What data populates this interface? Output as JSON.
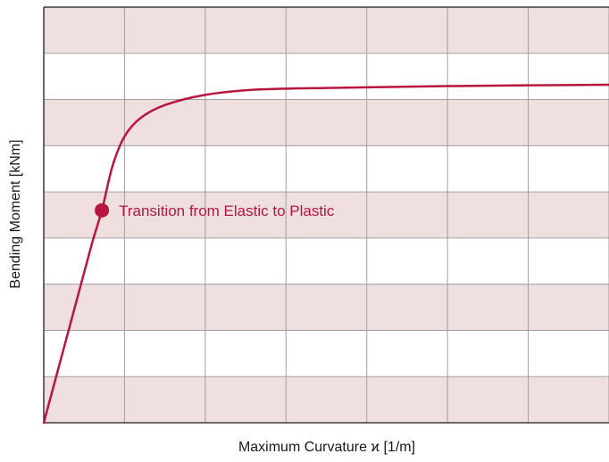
{
  "chart_data": {
    "type": "line",
    "title": "",
    "xlabel": "Maximum Curvature ϰ [1/m]",
    "ylabel": "Bending Moment [kNm]",
    "xlim": [
      0,
      7
    ],
    "ylim": [
      0,
      9
    ],
    "grid": true,
    "band_color": "#efdfdf",
    "grid_color": "#a0a0a0",
    "line_color": "#b8163f",
    "series": [
      {
        "values": [
          {
            "x": 0.0,
            "y": 0.0
          },
          {
            "x": 0.2,
            "y": 1.3
          },
          {
            "x": 0.4,
            "y": 2.6
          },
          {
            "x": 0.6,
            "y": 3.9
          },
          {
            "x": 0.72,
            "y": 4.6
          },
          {
            "x": 0.85,
            "y": 5.55
          },
          {
            "x": 1.0,
            "y": 6.2
          },
          {
            "x": 1.2,
            "y": 6.6
          },
          {
            "x": 1.5,
            "y": 6.88
          },
          {
            "x": 2.0,
            "y": 7.1
          },
          {
            "x": 2.6,
            "y": 7.21
          },
          {
            "x": 3.5,
            "y": 7.25
          },
          {
            "x": 5.0,
            "y": 7.29
          },
          {
            "x": 7.0,
            "y": 7.32
          }
        ]
      }
    ],
    "annotations": [
      {
        "x": 0.72,
        "y": 4.6,
        "text": "Transition from Elastic to Plastic"
      }
    ]
  }
}
